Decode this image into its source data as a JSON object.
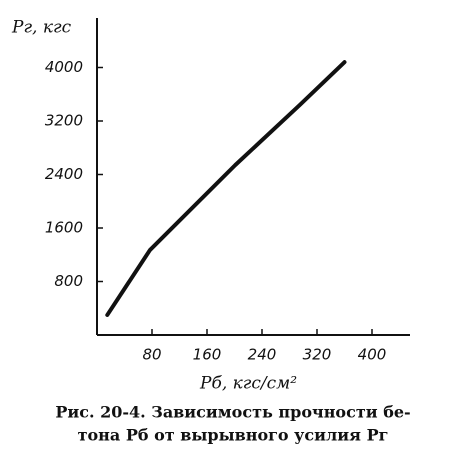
{
  "chart_data": {
    "type": "line",
    "y_label": "Pг, кгс",
    "x_label": "Pб, кгс/см²",
    "caption": [
      "Рис. 20-4. Зависимость прочности бе-",
      "тона Pб от вырывного усилия Pг"
    ],
    "x": [
      15,
      77,
      201,
      295,
      360
    ],
    "series": [
      {
        "color": "#111111",
        "values": [
          300,
          1270,
          2540,
          3440,
          4080
        ]
      }
    ],
    "xlim": [
      0,
      440
    ],
    "xticks": [
      80,
      160,
      240,
      320,
      400
    ],
    "ylim": [
      0,
      4700
    ],
    "yticks": [
      800,
      1600,
      2400,
      3200,
      4000
    ],
    "grid": false
  }
}
